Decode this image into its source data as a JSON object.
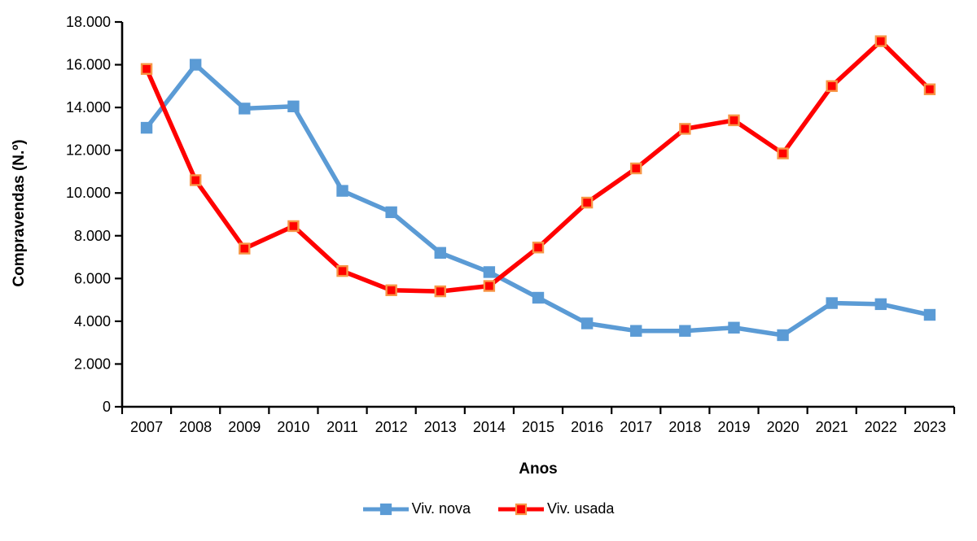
{
  "chart_data": {
    "type": "line",
    "title": "",
    "xlabel": "Anos",
    "ylabel": "Compravendas (N.º)",
    "categories": [
      "2007",
      "2008",
      "2009",
      "2010",
      "2011",
      "2012",
      "2013",
      "2014",
      "2015",
      "2016",
      "2017",
      "2018",
      "2019",
      "2020",
      "2021",
      "2022",
      "2023"
    ],
    "series": [
      {
        "name": "Viv. nova",
        "color": "#5B9BD5",
        "marker": "square",
        "marker_fill": "#5B9BD5",
        "marker_border": "#5B9BD5",
        "values": [
          13050,
          16000,
          13950,
          14050,
          10100,
          9100,
          7200,
          6300,
          5100,
          3900,
          3550,
          3550,
          3700,
          3350,
          4850,
          4800,
          4300
        ]
      },
      {
        "name": "Viv. usada",
        "color": "#FF0000",
        "marker": "square",
        "marker_fill": "#FF0000",
        "marker_border": "#F79646",
        "values": [
          15800,
          10600,
          7400,
          8450,
          6350,
          5450,
          5400,
          5650,
          7450,
          9550,
          11150,
          13000,
          13400,
          11850,
          15000,
          17100,
          14850
        ]
      }
    ],
    "ylim": [
      0,
      18000
    ],
    "yticks": [
      0,
      2000,
      4000,
      6000,
      8000,
      10000,
      12000,
      14000,
      16000,
      18000
    ],
    "ytick_labels": [
      "0",
      "2.000",
      "4.000",
      "6.000",
      "8.000",
      "10.000",
      "12.000",
      "14.000",
      "16.000",
      "18.000"
    ],
    "grid": false,
    "legend_position": "bottom",
    "axis_color": "#000000",
    "text_color": "#000000"
  }
}
